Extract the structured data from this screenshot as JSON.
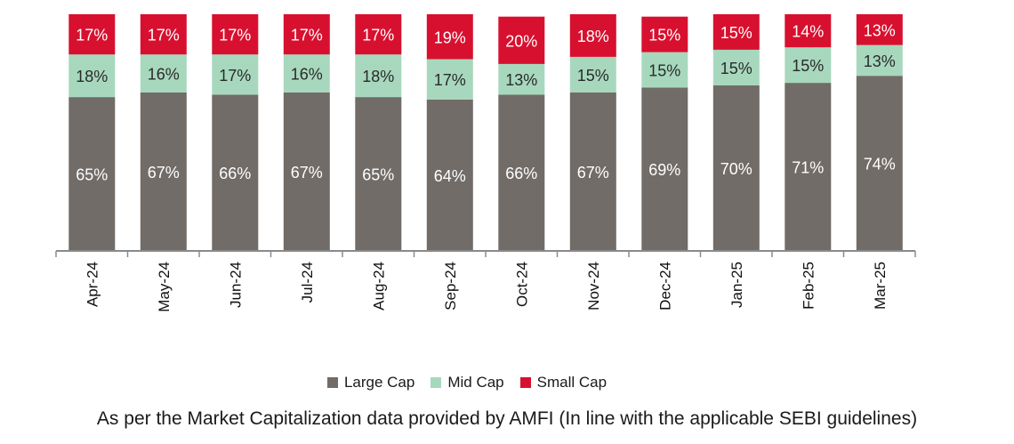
{
  "chart_data": {
    "type": "bar",
    "stacked": true,
    "categories": [
      "Apr-24",
      "May-24",
      "Jun-24",
      "Jul-24",
      "Aug-24",
      "Sep-24",
      "Oct-24",
      "Nov-24",
      "Dec-24",
      "Jan-25",
      "Feb-25",
      "Mar-25"
    ],
    "series": [
      {
        "name": "Large Cap",
        "color": "#716c68",
        "values": [
          65,
          67,
          66,
          67,
          65,
          64,
          66,
          67,
          69,
          70,
          71,
          74
        ],
        "labels": [
          "65%",
          "67%",
          "66%",
          "67%",
          "65%",
          "64%",
          "66%",
          "67%",
          "69%",
          "70%",
          "71%",
          "74%"
        ]
      },
      {
        "name": "Mid Cap",
        "color": "#a7d8bd",
        "values": [
          18,
          16,
          17,
          16,
          18,
          17,
          13,
          15,
          15,
          15,
          15,
          13
        ],
        "labels": [
          "18%",
          "16%",
          "17%",
          "16%",
          "18%",
          "17%",
          "13%",
          "15%",
          "15%",
          "15%",
          "15%",
          "13%"
        ]
      },
      {
        "name": "Small Cap",
        "color": "#d8102f",
        "values": [
          17,
          17,
          17,
          17,
          17,
          19,
          20,
          18,
          15,
          15,
          14,
          13
        ],
        "labels": [
          "17%",
          "17%",
          "17%",
          "17%",
          "17%",
          "19%",
          "20%",
          "18%",
          "15%",
          "15%",
          "14%",
          "13%"
        ]
      }
    ],
    "ylim": [
      0,
      100
    ],
    "grid": false,
    "legend_position": "bottom"
  },
  "legend": {
    "items": [
      {
        "label": "Large Cap",
        "color": "#716c68"
      },
      {
        "label": "Mid Cap",
        "color": "#a7d8bd"
      },
      {
        "label": "Small Cap",
        "color": "#d8102f"
      }
    ]
  },
  "footnote": "As per the Market Capitalization data provided by AMFI (In line with the applicable SEBI guidelines)"
}
